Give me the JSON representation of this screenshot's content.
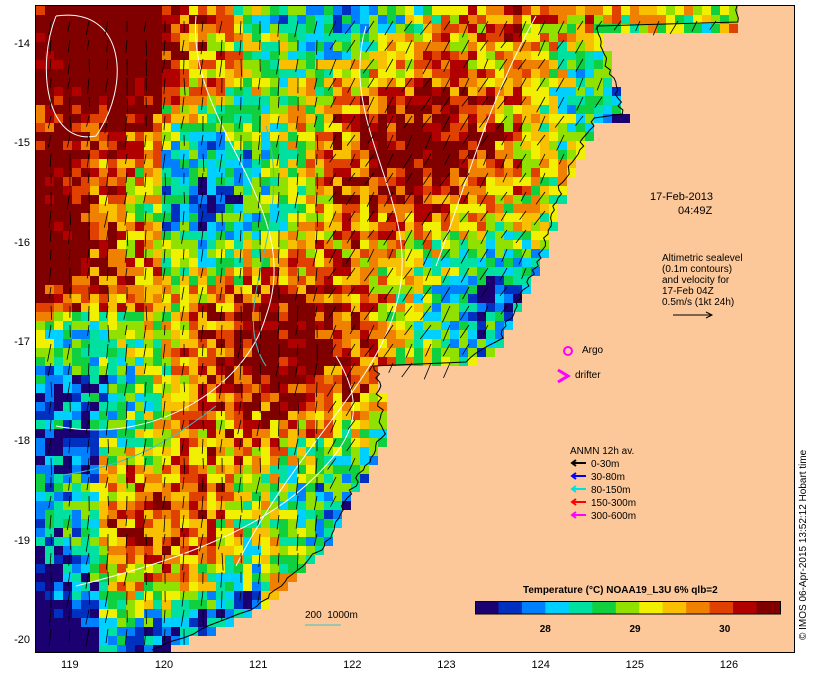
{
  "map": {
    "date_label": "17-Feb-2013",
    "time_label": "04:49Z",
    "altimetry_note": "Altimetric sealevel\n(0.1m contours)\nand velocity for\n17-Feb 04Z\n0.5m/s (1kt 24h)",
    "argo_label": "Argo",
    "drifter_label": "drifter",
    "scale_label": "200  1000m",
    "credit": "© IMOS 06-Apr-2015 13:52:12 Hobart time"
  },
  "axes": {
    "x_ticks": [
      "119",
      "120",
      "121",
      "122",
      "123",
      "124",
      "125",
      "126"
    ],
    "y_ticks": [
      "-14",
      "-15",
      "-16",
      "-17",
      "-18",
      "-19",
      "-20"
    ],
    "x_range": [
      118.63,
      126.68
    ],
    "y_range": [
      -13.6,
      -20.1
    ]
  },
  "mooring_legend": {
    "title": "ANMN 12h av.",
    "items": [
      {
        "label": "0-30m",
        "color": "#000000"
      },
      {
        "label": "30-80m",
        "color": "#0000ff"
      },
      {
        "label": "80-150m",
        "color": "#00e0e0"
      },
      {
        "label": "150-300m",
        "color": "#ff0000"
      },
      {
        "label": "300-600m",
        "color": "#ff00ff"
      }
    ]
  },
  "colorbar": {
    "title": "Temperature (°C) NOAA19_L3U 6% qlb=2",
    "ticks": [
      "28",
      "29",
      "30"
    ],
    "tick_values": [
      28,
      29,
      30
    ],
    "range": [
      27.2,
      30.6
    ],
    "colors": [
      "#1a0070",
      "#0030c0",
      "#0080ff",
      "#00d0ff",
      "#00e0a0",
      "#10d040",
      "#90e000",
      "#f0f000",
      "#f8c000",
      "#f08000",
      "#e04000",
      "#b00000",
      "#800000"
    ]
  },
  "colors": {
    "land": "#fcc89a",
    "coastline": "#000000",
    "contour": "#ffffff",
    "bathy": "#40c0c0"
  }
}
